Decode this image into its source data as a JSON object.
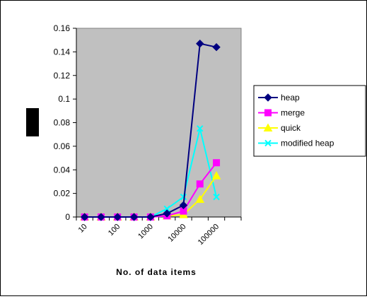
{
  "chart_data": {
    "type": "line",
    "title": "",
    "xlabel": "No. of data items",
    "ylabel": "",
    "ylim": [
      0,
      0.16
    ],
    "yticks": [
      "0",
      "0.02",
      "0.04",
      "0.06",
      "0.08",
      "0.1",
      "0.12",
      "0.14",
      "0.16"
    ],
    "categories": [
      "10",
      "",
      "100",
      "",
      "1000",
      "",
      "10000",
      "",
      "100000",
      ""
    ],
    "x_tick_labels_as_drawn": [
      "10",
      "100",
      "1000",
      "10000",
      "100000"
    ],
    "grid": false,
    "legend_placement": "right",
    "plot_background": "#c0c0c0",
    "series": [
      {
        "name": "heap",
        "color": "#000080",
        "marker": "diamond",
        "values": [
          0,
          0,
          0,
          0,
          0,
          0.003,
          0.01,
          0.147,
          0.144,
          null
        ]
      },
      {
        "name": "merge",
        "color": "#ff00ff",
        "marker": "square",
        "values": [
          0,
          0,
          0,
          0,
          0,
          0.001,
          0.005,
          0.028,
          0.046,
          null
        ]
      },
      {
        "name": "quick",
        "color": "#ffff00",
        "marker": "triangle",
        "values": [
          0,
          0,
          0,
          0,
          0,
          0.001,
          0.002,
          0.015,
          0.035,
          null
        ]
      },
      {
        "name": "modified heap",
        "color": "#00ffff",
        "marker": "x",
        "values": [
          0,
          0,
          0,
          0,
          0,
          0.007,
          0.017,
          0.075,
          0.017,
          null
        ]
      }
    ]
  }
}
